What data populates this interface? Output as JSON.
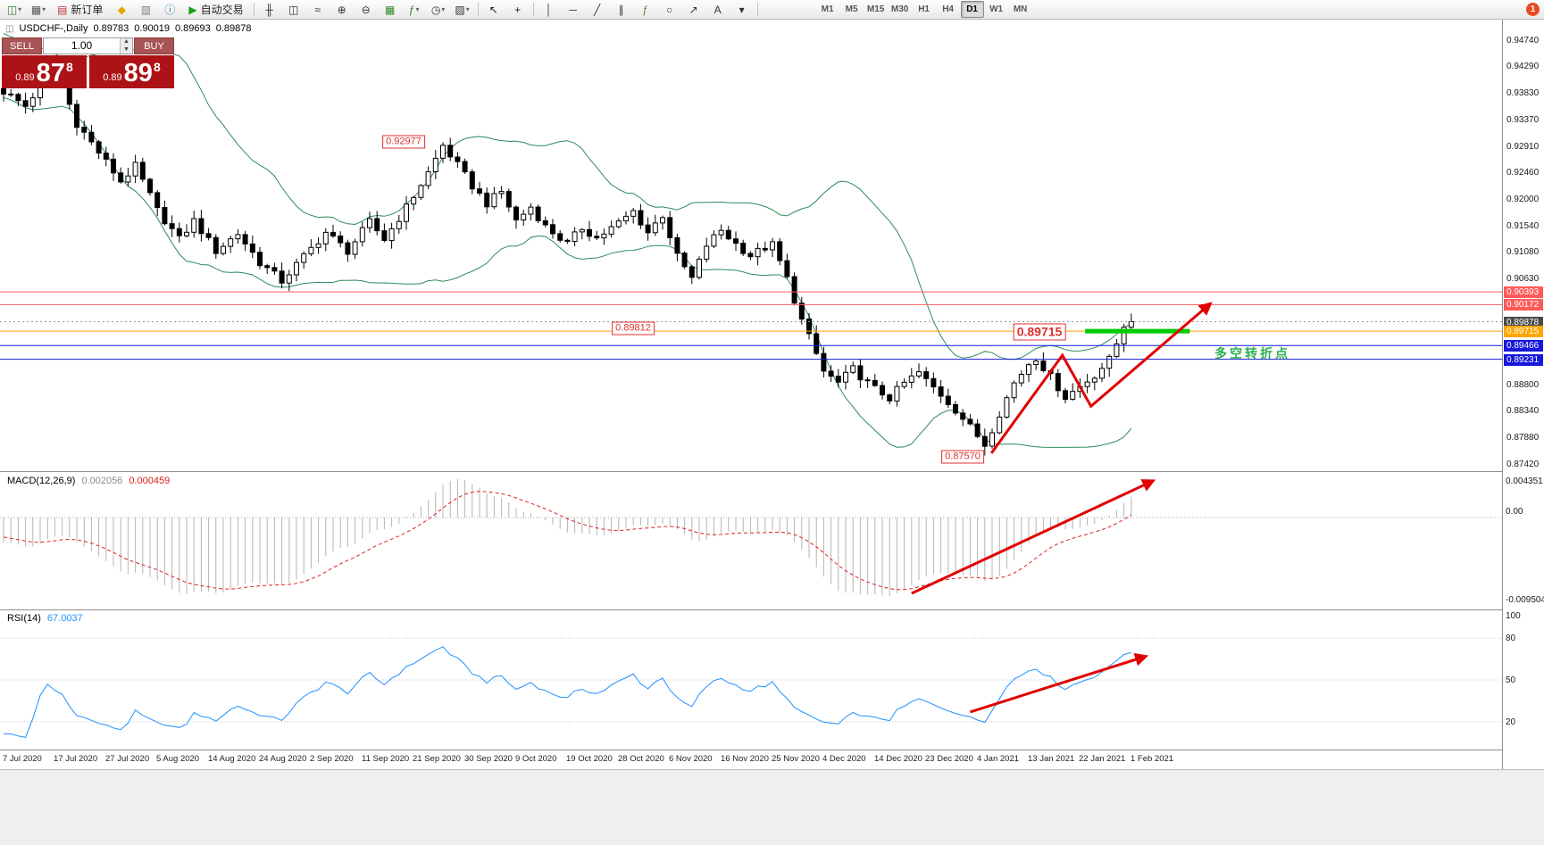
{
  "toolbar": {
    "items": [
      {
        "type": "icon",
        "name": "new-chart-icon",
        "glyph": "◫",
        "color": "#2e7d32",
        "caret": true
      },
      {
        "type": "icon",
        "name": "profiles-icon",
        "glyph": "▦",
        "color": "#555555",
        "caret": true
      },
      {
        "type": "button",
        "name": "new-order-button",
        "icon_glyph": "▤",
        "icon_color": "#c03333",
        "label": "新订单"
      },
      {
        "type": "icon",
        "name": "megaphone-icon",
        "glyph": "◆",
        "color": "#e8a400"
      },
      {
        "type": "icon",
        "name": "market-watch-icon",
        "glyph": "▥",
        "color": "#777777"
      },
      {
        "type": "icon",
        "name": "info-icon",
        "glyph": "ⓘ",
        "color": "#2a7ab0"
      },
      {
        "type": "button",
        "name": "autotrading-button",
        "icon_glyph": "▶",
        "icon_color": "#18a018",
        "label": "自动交易"
      },
      {
        "type": "sep"
      },
      {
        "type": "icon",
        "name": "bar-chart-icon",
        "glyph": "╫",
        "color": "#333333"
      },
      {
        "type": "icon",
        "name": "candlestick-chart-icon",
        "glyph": "◫",
        "color": "#333333"
      },
      {
        "type": "icon",
        "name": "line-chart-icon",
        "glyph": "≈",
        "color": "#333333"
      },
      {
        "type": "icon",
        "name": "zoom-in-icon",
        "glyph": "⊕",
        "color": "#333333"
      },
      {
        "type": "icon",
        "name": "zoom-out-icon",
        "glyph": "⊖",
        "color": "#333333"
      },
      {
        "type": "icon",
        "name": "tile-windows-icon",
        "glyph": "▦",
        "color": "#2e8b2e"
      },
      {
        "type": "icon",
        "name": "indicators-icon",
        "glyph": "ƒ",
        "color": "#2e8b2e",
        "caret": true
      },
      {
        "type": "icon",
        "name": "periods-icon",
        "glyph": "◷",
        "color": "#333333",
        "caret": true
      },
      {
        "type": "icon",
        "name": "templates-icon",
        "glyph": "▧",
        "color": "#333333",
        "caret": true
      },
      {
        "type": "sep"
      },
      {
        "type": "icon",
        "name": "cursor-icon",
        "glyph": "↖",
        "color": "#222222"
      },
      {
        "type": "icon",
        "name": "crosshair-icon",
        "glyph": "+",
        "color": "#222222"
      },
      {
        "type": "sep"
      },
      {
        "type": "icon",
        "name": "vertical-line-icon",
        "glyph": "│",
        "color": "#333333"
      },
      {
        "type": "icon",
        "name": "horizontal-line-icon",
        "glyph": "─",
        "color": "#333333"
      },
      {
        "type": "icon",
        "name": "trendline-icon",
        "glyph": "╱",
        "color": "#333333"
      },
      {
        "type": "icon",
        "name": "channel-icon",
        "glyph": "∥",
        "color": "#333333"
      },
      {
        "type": "icon",
        "name": "fibonacci-icon",
        "glyph": "ƒ",
        "color": "#8a6d3b"
      },
      {
        "type": "icon",
        "name": "shapes-icon",
        "glyph": "○",
        "color": "#333333"
      },
      {
        "type": "icon",
        "name": "arrows-icon",
        "glyph": "↗",
        "color": "#333333"
      },
      {
        "type": "icon",
        "name": "text-icon",
        "glyph": "A",
        "color": "#333333"
      },
      {
        "type": "icon",
        "name": "more-tools-icon",
        "glyph": "▾",
        "color": "#333333"
      },
      {
        "type": "sep"
      },
      {
        "type": "gap"
      }
    ],
    "timeframes": [
      "M1",
      "M5",
      "M15",
      "M30",
      "H1",
      "H4",
      "D1",
      "W1",
      "MN"
    ],
    "active_timeframe": "D1",
    "notification_badge": "1"
  },
  "chart_header": {
    "icon": "◫",
    "symbol": "USDCHF-,Daily",
    "open": "0.89783",
    "high": "0.90019",
    "low": "0.89693",
    "close": "0.89878"
  },
  "trade_panel": {
    "sell_label": "SELL",
    "buy_label": "BUY",
    "volume": "1.00",
    "spin_up": "▲",
    "spin_down": "▼",
    "sell_price_prefix": "0.89",
    "sell_price_big": "87",
    "sell_price_sup": "8",
    "buy_price_prefix": "0.89",
    "buy_price_big": "89",
    "buy_price_sup": "8"
  },
  "chart_data": {
    "type": "candlestick",
    "symbol": "USDCHF-",
    "timeframe": "Daily",
    "current_ohlc": {
      "open": 0.89783,
      "high": 0.90019,
      "low": 0.89693,
      "close": 0.89878
    },
    "num_candles": 155,
    "label_step": 7,
    "price_range": {
      "min": 0.873,
      "max": 0.9509
    },
    "close_waypoints": [
      [
        0,
        0.9385
      ],
      [
        3,
        0.936
      ],
      [
        6,
        0.9412
      ],
      [
        8,
        0.9395
      ],
      [
        10,
        0.933
      ],
      [
        13,
        0.928
      ],
      [
        16,
        0.923
      ],
      [
        18,
        0.9256
      ],
      [
        21,
        0.918
      ],
      [
        24,
        0.913
      ],
      [
        26,
        0.9162
      ],
      [
        29,
        0.911
      ],
      [
        32,
        0.914
      ],
      [
        35,
        0.909
      ],
      [
        38,
        0.9058
      ],
      [
        41,
        0.91
      ],
      [
        44,
        0.9142
      ],
      [
        47,
        0.911
      ],
      [
        50,
        0.916
      ],
      [
        52,
        0.913
      ],
      [
        55,
        0.9185
      ],
      [
        58,
        0.9245
      ],
      [
        60,
        0.9292
      ],
      [
        62,
        0.9258
      ],
      [
        64,
        0.9222
      ],
      [
        66,
        0.9192
      ],
      [
        68,
        0.9212
      ],
      [
        70,
        0.9162
      ],
      [
        72,
        0.9186
      ],
      [
        74,
        0.9152
      ],
      [
        77,
        0.9122
      ],
      [
        79,
        0.915
      ],
      [
        81,
        0.9132
      ],
      [
        84,
        0.9158
      ],
      [
        86,
        0.9178
      ],
      [
        88,
        0.9142
      ],
      [
        90,
        0.9172
      ],
      [
        92,
        0.91
      ],
      [
        94,
        0.9062
      ],
      [
        96,
        0.912
      ],
      [
        98,
        0.9146
      ],
      [
        100,
        0.9122
      ],
      [
        102,
        0.9102
      ],
      [
        104,
        0.9116
      ],
      [
        105,
        0.912
      ],
      [
        107,
        0.9062
      ],
      [
        109,
        0.899
      ],
      [
        111,
        0.8932
      ],
      [
        112,
        0.8902
      ],
      [
        114,
        0.8882
      ],
      [
        116,
        0.8906
      ],
      [
        118,
        0.8882
      ],
      [
        119,
        0.8872
      ],
      [
        121,
        0.8856
      ],
      [
        123,
        0.8882
      ],
      [
        125,
        0.89
      ],
      [
        126,
        0.8886
      ],
      [
        128,
        0.8862
      ],
      [
        130,
        0.8836
      ],
      [
        132,
        0.8806
      ],
      [
        134,
        0.8776
      ],
      [
        136,
        0.883
      ],
      [
        138,
        0.8882
      ],
      [
        140,
        0.8916
      ],
      [
        141,
        0.8926
      ],
      [
        143,
        0.8892
      ],
      [
        145,
        0.8858
      ],
      [
        147,
        0.8876
      ],
      [
        149,
        0.8896
      ],
      [
        151,
        0.8922
      ],
      [
        153,
        0.8978
      ],
      [
        154,
        0.89878
      ]
    ],
    "forced_candles": {
      "60": {
        "h": 0.92977
      },
      "134": {
        "l": 0.8757
      },
      "153": {
        "c": 0.89783
      },
      "154": {
        "o": 0.89783,
        "h": 0.90019,
        "l": 0.89693,
        "c": 0.89878
      }
    },
    "bollinger": {
      "period": 20,
      "deviation": 2,
      "color": "#2e8b57"
    },
    "y_ticks": [
      "0.94740",
      "0.94290",
      "0.93830",
      "0.93370",
      "0.92910",
      "0.92460",
      "0.92000",
      "0.91540",
      "0.91080",
      "0.90630",
      "0.88800",
      "0.88340",
      "0.87880",
      "0.87420"
    ],
    "x_labels": [
      "7 Jul 2020",
      "17 Jul 2020",
      "27 Jul 2020",
      "5 Aug 2020",
      "14 Aug 2020",
      "24 Aug 2020",
      "2 Sep 2020",
      "11 Sep 2020",
      "21 Sep 2020",
      "30 Sep 2020",
      "9 Oct 2020",
      "19 Oct 2020",
      "28 Oct 2020",
      "6 Nov 2020",
      "16 Nov 2020",
      "25 Nov 2020",
      "4 Dec 2020",
      "14 Dec 2020",
      "23 Dec 2020",
      "4 Jan 2021",
      "13 Jan 2021",
      "22 Jan 2021",
      "1 Feb 2021"
    ],
    "levels": [
      {
        "price": 0.90393,
        "tag_text": "0.90393",
        "color": "#ff5a5a",
        "style": "solid",
        "tag": true,
        "label": "resistance-1"
      },
      {
        "price": 0.90172,
        "tag_text": "0.90172",
        "color": "#ff5a5a",
        "style": "solid",
        "tag": true,
        "label": "resistance-2"
      },
      {
        "price": 0.89878,
        "tag_text": "0.89878",
        "color": "#9a9a9a",
        "style": "dotted",
        "tag": true,
        "tag_bg": "#4a4a4a",
        "label": "current-price"
      },
      {
        "price": 0.89715,
        "tag_text": "0.89715",
        "color": "#ffa500",
        "style": "solid",
        "tag": true,
        "label": "key-level"
      },
      {
        "price": 0.89466,
        "tag_text": "0.89466",
        "color": "#1717dd",
        "style": "solid",
        "tag": true,
        "label": "support-1"
      },
      {
        "price": 0.89231,
        "tag_text": "0.89231",
        "color": "#1717dd",
        "style": "solid",
        "tag": true,
        "label": "support-2"
      }
    ],
    "indicators": {
      "macd": {
        "label": "MACD(12,26,9)",
        "value_main": "0.002056",
        "value_signal": "0.000459",
        "axis": [
          "0.004351",
          "0.00",
          "-0.009504"
        ],
        "histogram_color": "#b4b4b4",
        "signal_color": "#e02020"
      },
      "rsi": {
        "label": "RSI(14)",
        "value": "67.0037",
        "axis": [
          "100",
          "80",
          "50",
          "20"
        ],
        "levels": [
          80,
          50,
          20
        ],
        "color": "#1e90ff"
      }
    },
    "annotations": {
      "price_labels": [
        {
          "text": "0.92977",
          "i": 54.6,
          "price": 0.92977,
          "large": false
        },
        {
          "text": "0.89812",
          "i": 86,
          "price": 0.89764,
          "large": false
        },
        {
          "text": "0.89715",
          "i": 141.5,
          "price": 0.897,
          "large": true
        },
        {
          "text": "0.87570",
          "i": 131,
          "price": 0.8754,
          "large": false
        }
      ],
      "trend_segment": {
        "i1": 147.7,
        "i2": 162,
        "price": 0.89715,
        "color": "#00cc00",
        "width": 5
      },
      "zigzag_arrow": {
        "color": "#e00000",
        "width": 3,
        "points": [
          [
            134.9,
            0.8761
          ],
          [
            144.6,
            0.893
          ],
          [
            148.5,
            0.8842
          ],
          [
            164.8,
            0.9019
          ]
        ]
      },
      "note_text": {
        "text": "多空转折点",
        "i": 165.4,
        "price": 0.8933,
        "color": "#2fae50"
      },
      "macd_arrow": {
        "color": "#e00000",
        "width": 3,
        "points_iv": [
          [
            124,
            -0.0064
          ],
          [
            157,
            0.0031
          ]
        ]
      },
      "rsi_arrow": {
        "color": "#e00000",
        "width": 3,
        "points_iv": [
          [
            132,
            27
          ],
          [
            156,
            67
          ]
        ]
      }
    }
  }
}
